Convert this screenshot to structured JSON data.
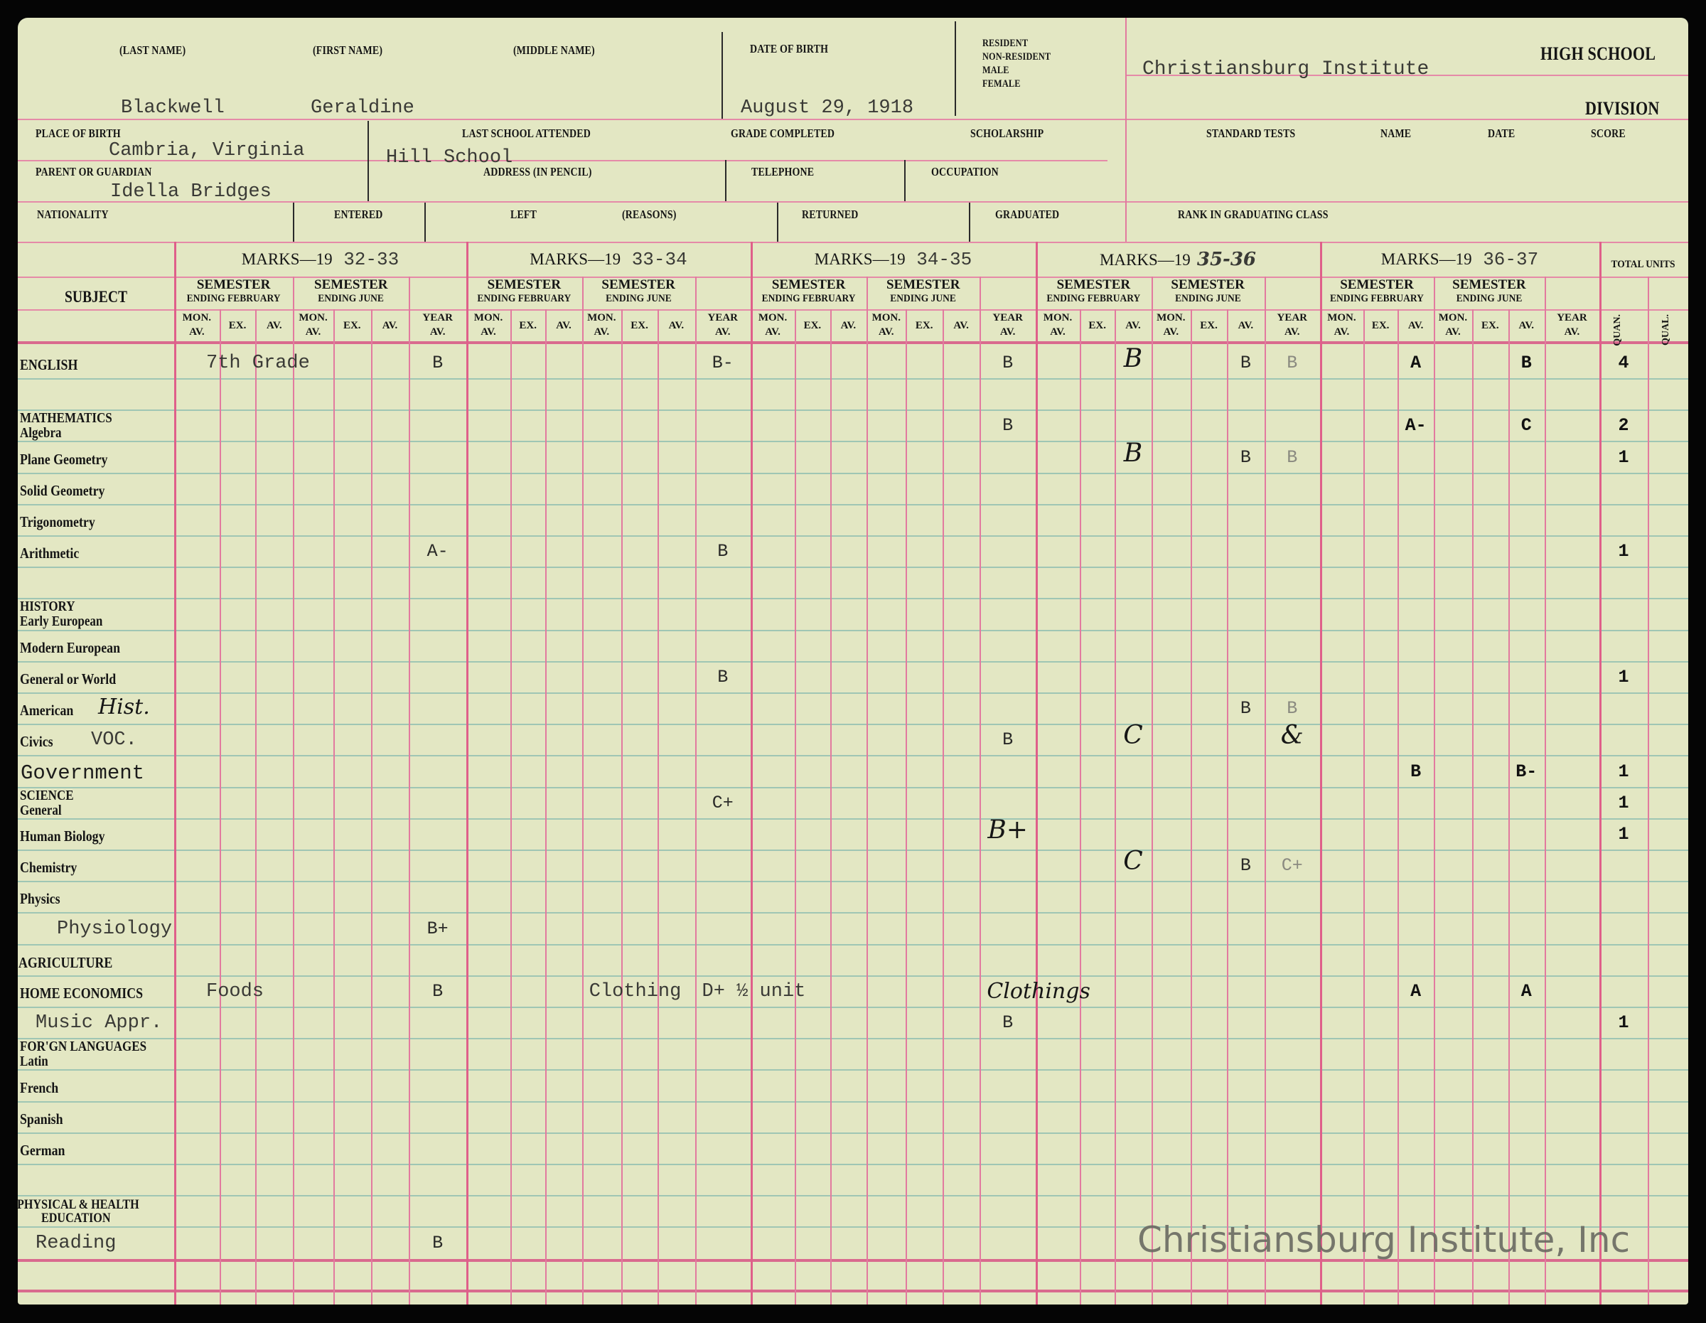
{
  "student": {
    "last_name_label": "(LAST NAME)",
    "first_name_label": "(FIRST NAME)",
    "middle_name_label": "(MIDDLE NAME)",
    "date_of_birth_label": "DATE OF BIRTH",
    "status_labels": [
      "RESIDENT",
      "NON-RESIDENT",
      "MALE",
      "FEMALE"
    ],
    "last_name": "Blackwell",
    "first_name": "Geraldine",
    "date_of_birth": "August 29, 1918",
    "place_of_birth_label": "PLACE OF BIRTH",
    "place_of_birth": "Cambria, Virginia",
    "last_school_label": "LAST SCHOOL ATTENDED",
    "last_school": "Hill School",
    "grade_completed_label": "GRADE COMPLETED",
    "scholarship_label": "SCHOLARSHIP",
    "parent_label": "PARENT OR GUARDIAN",
    "parent": "Idella Bridges",
    "address_label": "ADDRESS (IN PENCIL)",
    "telephone_label": "TELEPHONE",
    "occupation_label": "OCCUPATION",
    "nationality_label": "NATIONALITY",
    "entered_label": "ENTERED",
    "left_label": "LEFT",
    "reasons_label": "(REASONS)",
    "returned_label": "RETURNED",
    "graduated_label": "GRADUATED"
  },
  "school": {
    "name": "Christiansburg Institute",
    "high_school_label": "HIGH SCHOOL",
    "division_label": "DIVISION",
    "standard_tests_label": "STANDARD TESTS",
    "name_label": "NAME",
    "date_label": "DATE",
    "score_label": "SCORE",
    "rank_label": "RANK IN GRADUATING CLASS"
  },
  "grid": {
    "subject_header": "SUBJECT",
    "marks_prefix": "MARKS—19",
    "years": [
      {
        "label": "32-33",
        "style": "typed"
      },
      {
        "label": "33-34",
        "style": "typed"
      },
      {
        "label": "34-35",
        "style": "typed"
      },
      {
        "label": "35-36",
        "style": "hand"
      },
      {
        "label": "36-37",
        "style": "typed"
      }
    ],
    "semester_feb": [
      "SEMESTER",
      "ENDING FEBRUARY"
    ],
    "semester_jun": [
      "SEMESTER",
      "ENDING JUNE"
    ],
    "column_labels": [
      [
        "MON.",
        "AV."
      ],
      [
        "EX."
      ],
      [
        "AV."
      ],
      [
        "MON.",
        "AV."
      ],
      [
        "EX."
      ],
      [
        "AV."
      ],
      [
        "YEAR",
        "AV."
      ]
    ],
    "total_units_label": "TOTAL UNITS",
    "quan_label": "QUAN.",
    "qual_label": "QUAL."
  },
  "subjects": [
    {
      "label": "ENGLISH",
      "kind": "caps",
      "grades": [
        {
          "year_index": 0,
          "column": "feb_mon",
          "value": "7th Grade",
          "style": "note"
        },
        {
          "year_index": 0,
          "column": "year_av",
          "value": "B"
        },
        {
          "year_index": 1,
          "column": "year_av",
          "value": "B-"
        },
        {
          "year_index": 2,
          "column": "year_av",
          "value": "B"
        },
        {
          "year_index": 3,
          "column": "feb_av",
          "value": "B",
          "style": "hand"
        },
        {
          "year_index": 3,
          "column": "jun_av",
          "value": "B"
        },
        {
          "year_index": 3,
          "column": "year_av",
          "value": "B",
          "style": "faded"
        },
        {
          "year_index": 4,
          "column": "feb_av",
          "value": "A",
          "style": "bold"
        },
        {
          "year_index": 4,
          "column": "jun_av",
          "value": "B",
          "style": "bold"
        }
      ],
      "units": "4"
    },
    {
      "heading": "MATHEMATICS",
      "label": "Algebra",
      "grades": [
        {
          "year_index": 2,
          "column": "year_av",
          "value": "B"
        },
        {
          "year_index": 4,
          "column": "feb_av",
          "value": "A-",
          "style": "bold"
        },
        {
          "year_index": 4,
          "column": "jun_av",
          "value": "C",
          "style": "bold"
        }
      ],
      "units": "2"
    },
    {
      "label": "Plane Geometry",
      "grades": [
        {
          "year_index": 3,
          "column": "feb_av",
          "value": "B",
          "style": "hand"
        },
        {
          "year_index": 3,
          "column": "jun_av",
          "value": "B"
        },
        {
          "year_index": 3,
          "column": "year_av",
          "value": "B",
          "style": "faded"
        }
      ],
      "units": "1"
    },
    {
      "label": "Solid Geometry",
      "grades": []
    },
    {
      "label": "Trigonometry",
      "grades": []
    },
    {
      "label": "Arithmetic",
      "grades": [
        {
          "year_index": 0,
          "column": "year_av",
          "value": "A-"
        },
        {
          "year_index": 1,
          "column": "year_av",
          "value": "B"
        }
      ],
      "units": "1"
    },
    {
      "heading": "HISTORY",
      "label": "Early European",
      "grades": []
    },
    {
      "label": "Modern European",
      "grades": []
    },
    {
      "label": "General or World",
      "grades": [
        {
          "year_index": 1,
          "column": "year_av",
          "value": "B"
        }
      ],
      "units": "1"
    },
    {
      "label": "American",
      "annotation": "Hist.",
      "annotation_style": "hand",
      "grades": [
        {
          "year_index": 3,
          "column": "jun_av",
          "value": "B"
        },
        {
          "year_index": 3,
          "column": "year_av",
          "value": "B",
          "style": "faded"
        }
      ]
    },
    {
      "label": "Civics",
      "annotation": "VOC.",
      "annotation_style": "typed",
      "grades": [
        {
          "year_index": 2,
          "column": "year_av",
          "value": "B"
        },
        {
          "year_index": 3,
          "column": "feb_av",
          "value": "C",
          "style": "hand"
        },
        {
          "year_index": 3,
          "column": "year_av",
          "value": "&",
          "style": "hand"
        }
      ]
    },
    {
      "label": "Government",
      "kind": "typed",
      "grades": [
        {
          "year_index": 4,
          "column": "feb_av",
          "value": "B",
          "style": "bold"
        },
        {
          "year_index": 4,
          "column": "jun_av",
          "value": "B-",
          "style": "bold"
        }
      ],
      "units": "1"
    },
    {
      "heading": "SCIENCE",
      "label": "General",
      "grades": [
        {
          "year_index": 1,
          "column": "year_av",
          "value": "C+"
        }
      ],
      "units": "1"
    },
    {
      "label": "Human Biology",
      "grades": [
        {
          "year_index": 2,
          "column": "year_av",
          "value": "B+",
          "style": "hand"
        }
      ],
      "units": "1",
      "units_style": "faded"
    },
    {
      "label": "Chemistry",
      "grades": [
        {
          "year_index": 3,
          "column": "feb_av",
          "value": "C",
          "style": "hand"
        },
        {
          "year_index": 3,
          "column": "jun_av",
          "value": "B"
        },
        {
          "year_index": 3,
          "column": "year_av",
          "value": "C+",
          "style": "faded"
        }
      ]
    },
    {
      "label": "Physics",
      "grades": []
    },
    {
      "label": "Physiology",
      "kind": "typed",
      "grades": [
        {
          "year_index": 0,
          "column": "year_av",
          "value": "B+"
        }
      ]
    },
    {
      "heading_only": "AGRICULTURE",
      "grades": []
    },
    {
      "label": "HOME ECONOMICS",
      "kind": "caps",
      "grades": [
        {
          "year_index": 0,
          "column": "feb_mon",
          "value": "Foods",
          "style": "note"
        },
        {
          "year_index": 0,
          "column": "year_av",
          "value": "B"
        },
        {
          "year_index": 1,
          "column": "jun_mon",
          "value": "Clothing",
          "style": "note"
        },
        {
          "year_index": 1,
          "column": "year_av",
          "value": "D+ ½ unit",
          "style": "note"
        },
        {
          "year_index": 2,
          "column": "year_av",
          "value": "Clothings",
          "style": "handnote"
        },
        {
          "year_index": 4,
          "column": "feb_av",
          "value": "A",
          "style": "bold"
        },
        {
          "year_index": 4,
          "column": "jun_av",
          "value": "A",
          "style": "bold"
        }
      ]
    },
    {
      "label": "Music Appr.",
      "kind": "typed",
      "grades": [
        {
          "year_index": 2,
          "column": "year_av",
          "value": "B"
        }
      ],
      "units": "1"
    },
    {
      "heading": "FOR'GN LANGUAGES",
      "label": "Latin",
      "grades": []
    },
    {
      "label": "French",
      "grades": []
    },
    {
      "label": "Spanish",
      "grades": []
    },
    {
      "label": "German",
      "grades": []
    },
    {
      "heading_only": "PHYSICAL & HEALTH",
      "heading_line2": "EDUCATION",
      "grades": []
    },
    {
      "label": "Reading",
      "kind": "typed",
      "grades": [
        {
          "year_index": 0,
          "column": "year_av",
          "value": "B"
        }
      ]
    }
  ],
  "watermark": "Christiansburg Institute, Inc",
  "colors": {
    "paper": "#e3e7c3",
    "rule_pink": "#e27a9f",
    "rule_green": "#9fc6b4",
    "ink": "#151515"
  }
}
